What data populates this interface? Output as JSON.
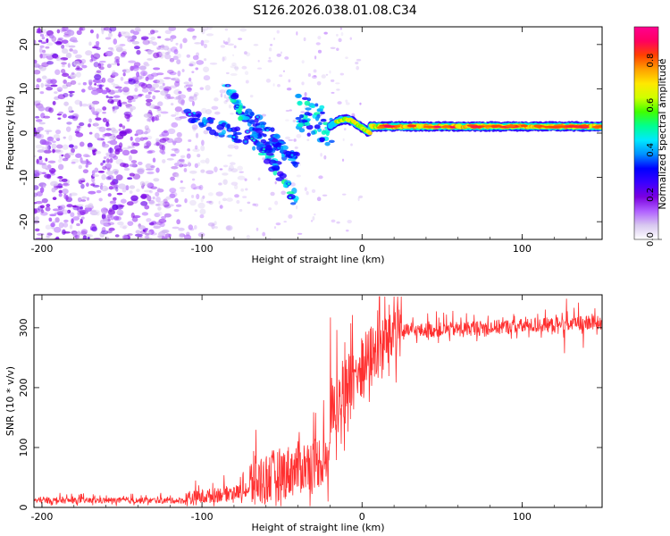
{
  "title": "S126.2026.038.01.08.C34",
  "chart_data": [
    {
      "type": "heatmap",
      "xlabel": "Height of straight line (km)",
      "ylabel": "Frequency (Hz)",
      "xlim": [
        -205,
        150
      ],
      "ylim": [
        -24,
        24
      ],
      "xticks": [
        -200,
        -100,
        0,
        100
      ],
      "yticks": [
        -20,
        -10,
        0,
        10,
        20
      ],
      "colorbar": {
        "label": "Normalized spectral amplitude",
        "range": [
          0.0,
          0.95
        ],
        "ticks": [
          0.0,
          0.2,
          0.4,
          0.6,
          0.8
        ],
        "colors": [
          "#ffffff",
          "#d8c8f0",
          "#b060ff",
          "#7b00e0",
          "#3a00ff",
          "#0000ff",
          "#0090ff",
          "#00e8ff",
          "#00ff90",
          "#40ff00",
          "#d0ff00",
          "#ffe800",
          "#ffa000",
          "#ff4000",
          "#ff0060",
          "#ff0090"
        ]
      },
      "features": {
        "noise_region_x": [
          -205,
          -90
        ],
        "descending_streaks": [
          {
            "x": [
              -85,
              -40
            ],
            "y": [
              11,
              -16
            ]
          },
          {
            "x": [
              -70,
              -40
            ],
            "y": [
              4,
              -7
            ]
          },
          {
            "x": [
              -110,
              -55
            ],
            "y": [
              4,
              -4
            ]
          }
        ],
        "ridge_x": [
          -20,
          150
        ],
        "ridge_y": 1.5
      }
    },
    {
      "type": "line",
      "series": [
        {
          "name": "SNR",
          "color": "#ff3030"
        }
      ],
      "xlabel": "Height of straight line (km)",
      "ylabel": "SNR (10 * v/v)",
      "xlim": [
        -205,
        150
      ],
      "ylim": [
        0,
        355
      ],
      "xticks": [
        -200,
        -100,
        0,
        100
      ],
      "yticks": [
        0,
        100,
        200,
        300
      ],
      "segments": [
        {
          "x": [
            -205,
            -110
          ],
          "base": 10,
          "amp": 10
        },
        {
          "x": [
            -110,
            -70
          ],
          "base": [
            10,
            25
          ],
          "amp": 25
        },
        {
          "x": [
            -70,
            -20
          ],
          "base": [
            25,
            70
          ],
          "amp": 90
        },
        {
          "x": [
            -20,
            25
          ],
          "base": [
            120,
            290
          ],
          "amp": 110
        },
        {
          "x": [
            25,
            150
          ],
          "base": [
            290,
            305
          ],
          "amp": 25
        }
      ]
    }
  ]
}
